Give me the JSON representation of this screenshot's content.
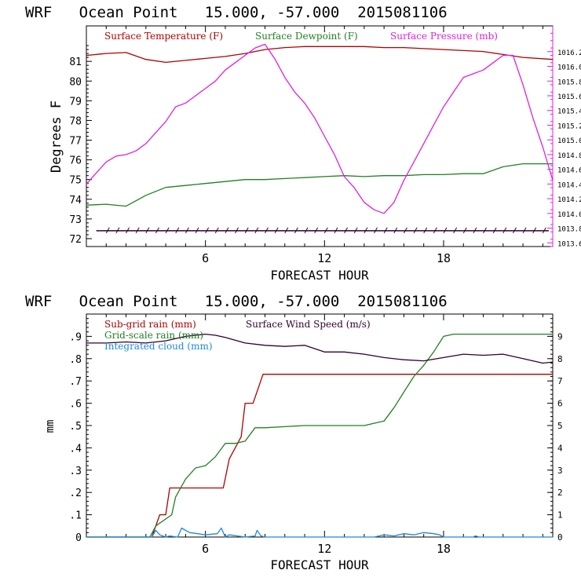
{
  "chart_data": [
    {
      "type": "line",
      "title": "WRF   Ocean Point   15.000, -57.000  2015081106",
      "xlabel": "FORECAST HOUR",
      "ylabel": "Degrees F",
      "xlim": [
        0,
        23.5
      ],
      "ylim": [
        71.6,
        82.8
      ],
      "x_ticks": [
        6,
        12,
        18
      ],
      "y_ticks": [
        72,
        73,
        74,
        75,
        76,
        77,
        78,
        79,
        80,
        81
      ],
      "y2lim": [
        1013.55,
        1016.55
      ],
      "y2_ticks": [
        "1013.6",
        "1013.8",
        "1014.0",
        "1014.2",
        "1014.4",
        "1014.6",
        "1014.8",
        "1015.0",
        "1015.2",
        "1015.4",
        "1015.6",
        "1015.8",
        "1016.0",
        "1016.2"
      ],
      "legend_placement": "top",
      "series": [
        {
          "name": "Surface Temperature (F)",
          "color": "#b00000",
          "axis": "left",
          "x": [
            0,
            1,
            2,
            3,
            4,
            5,
            6,
            7,
            8,
            9,
            10,
            11,
            12,
            13,
            14,
            15,
            16,
            17,
            18,
            19,
            20,
            21,
            22,
            23.5
          ],
          "values": [
            81.3,
            81.4,
            81.45,
            81.1,
            80.95,
            81.05,
            81.15,
            81.25,
            81.4,
            81.6,
            81.7,
            81.75,
            81.75,
            81.75,
            81.75,
            81.7,
            81.7,
            81.65,
            81.6,
            81.55,
            81.5,
            81.35,
            81.2,
            81.1
          ]
        },
        {
          "name": "Surface Dewpoint (F)",
          "color": "#208020",
          "axis": "left",
          "x": [
            0,
            1,
            2,
            3,
            4,
            5,
            6,
            7,
            8,
            9,
            10,
            11,
            12,
            13,
            14,
            15,
            16,
            17,
            18,
            19,
            20,
            21,
            22,
            23.5
          ],
          "values": [
            73.7,
            73.75,
            73.65,
            74.2,
            74.6,
            74.7,
            74.8,
            74.9,
            75.0,
            75.0,
            75.05,
            75.1,
            75.15,
            75.2,
            75.15,
            75.2,
            75.2,
            75.25,
            75.25,
            75.3,
            75.3,
            75.65,
            75.8,
            75.8
          ]
        },
        {
          "name": "Surface Pressure (mb)",
          "color": "#e020e0",
          "axis": "right",
          "x": [
            0,
            0.5,
            1,
            1.5,
            2,
            2.5,
            3,
            3.5,
            4,
            4.5,
            5,
            5.5,
            6,
            6.5,
            7,
            7.5,
            8,
            8.5,
            9,
            9.5,
            10,
            10.5,
            11,
            11.5,
            12,
            12.5,
            13,
            13.5,
            14,
            14.5,
            15,
            15.5,
            16,
            16.5,
            17,
            17.5,
            18,
            18.5,
            19,
            19.5,
            20,
            20.5,
            21,
            21.5,
            22,
            22.5,
            23,
            23.5
          ],
          "values": [
            1014.4,
            1014.55,
            1014.7,
            1014.78,
            1014.8,
            1014.85,
            1014.95,
            1015.1,
            1015.25,
            1015.45,
            1015.5,
            1015.6,
            1015.7,
            1015.8,
            1015.95,
            1016.05,
            1016.15,
            1016.25,
            1016.3,
            1016.1,
            1015.85,
            1015.65,
            1015.5,
            1015.3,
            1015.05,
            1014.8,
            1014.5,
            1014.35,
            1014.15,
            1014.05,
            1014.0,
            1014.15,
            1014.45,
            1014.7,
            1014.95,
            1015.2,
            1015.45,
            1015.65,
            1015.85,
            1015.9,
            1015.95,
            1016.05,
            1016.15,
            1016.15,
            1015.75,
            1015.3,
            1014.9,
            1014.45
          ]
        }
      ]
    },
    {
      "type": "line",
      "title": "WRF   Ocean Point   15.000, -57.000  2015081106",
      "xlabel": "FORECAST HOUR",
      "ylabel": "mm",
      "xlim": [
        0,
        23.5
      ],
      "ylim": [
        0,
        1.0
      ],
      "x_ticks": [
        6,
        12,
        18
      ],
      "y_ticks": [
        "0",
        ".1",
        ".2",
        ".3",
        ".4",
        ".5",
        ".6",
        ".7",
        ".8",
        ".9"
      ],
      "y2lim": [
        0,
        10
      ],
      "y2_ticks": [
        "0",
        "1",
        "2",
        "3",
        "4",
        "5",
        "6",
        "7",
        "8",
        "9"
      ],
      "legend_placement": "top-left",
      "series": [
        {
          "name": "Sub-grid rain (mm)",
          "color": "#b00000",
          "axis": "left",
          "x": [
            0,
            3.3,
            3.7,
            4.0,
            4.2,
            4.6,
            6.0,
            6.9,
            7.2,
            7.8,
            8.0,
            8.4,
            8.9,
            9.2,
            23.5
          ],
          "values": [
            0,
            0,
            0.1,
            0.1,
            0.22,
            0.22,
            0.22,
            0.22,
            0.35,
            0.45,
            0.6,
            0.6,
            0.73,
            0.73,
            0.73
          ]
        },
        {
          "name": "Grid-scale rain (mm)",
          "color": "#208020",
          "axis": "left",
          "x": [
            0,
            3.2,
            3.5,
            4.3,
            4.5,
            5.0,
            5.5,
            6.0,
            6.5,
            7.0,
            7.5,
            8.0,
            8.5,
            9.0,
            10,
            11,
            12,
            13,
            14,
            15,
            15.5,
            16,
            16.5,
            17,
            17.5,
            18,
            18.5,
            19,
            20,
            21,
            22,
            23.5
          ],
          "values": [
            0,
            0,
            0.05,
            0.1,
            0.18,
            0.26,
            0.31,
            0.32,
            0.36,
            0.42,
            0.42,
            0.43,
            0.49,
            0.49,
            0.495,
            0.5,
            0.5,
            0.5,
            0.5,
            0.52,
            0.58,
            0.65,
            0.72,
            0.77,
            0.83,
            0.9,
            0.91,
            0.91,
            0.91,
            0.91,
            0.91,
            0.91
          ]
        },
        {
          "name": "Integrated cloud (mm)",
          "color": "#1e88e0",
          "axis": "left",
          "x": [
            0,
            3.3,
            3.5,
            3.7,
            4.0,
            4.2,
            4.6,
            4.8,
            5.0,
            5.2,
            5.6,
            6.0,
            6.6,
            6.8,
            7.0,
            7.2,
            8.0,
            8.5,
            8.6,
            8.8,
            9.0,
            14.5,
            15.0,
            15.5,
            16.0,
            16.5,
            17.0,
            17.5,
            17.8,
            18.0,
            19.5,
            19.6,
            19.8,
            23.5
          ],
          "values": [
            0,
            0,
            0.03,
            0.01,
            0.0,
            0.005,
            0.0,
            0.04,
            0.03,
            0.02,
            0.015,
            0.01,
            0.015,
            0.04,
            0.0,
            0.01,
            0.0,
            0.005,
            0.03,
            0.005,
            0.0,
            0.0,
            0.01,
            0.005,
            0.015,
            0.01,
            0.02,
            0.015,
            0.01,
            0.0,
            0.0,
            0.005,
            0.0,
            0.0
          ]
        },
        {
          "name": "Surface Wind Speed (m/s)",
          "color": "#300030",
          "axis": "right",
          "x": [
            0,
            1,
            2,
            3,
            4,
            5,
            6,
            6.5,
            7,
            8,
            9,
            10,
            11,
            12,
            13,
            14,
            15,
            16,
            17,
            18,
            19,
            20,
            21,
            22,
            23,
            23.5
          ],
          "values": [
            8.7,
            8.7,
            8.75,
            8.7,
            8.8,
            9.0,
            9.1,
            9.05,
            8.95,
            8.7,
            8.6,
            8.55,
            8.6,
            8.3,
            8.3,
            8.2,
            8.05,
            7.95,
            7.9,
            8.05,
            8.2,
            8.15,
            8.2,
            8.0,
            7.8,
            7.85
          ]
        }
      ]
    }
  ]
}
